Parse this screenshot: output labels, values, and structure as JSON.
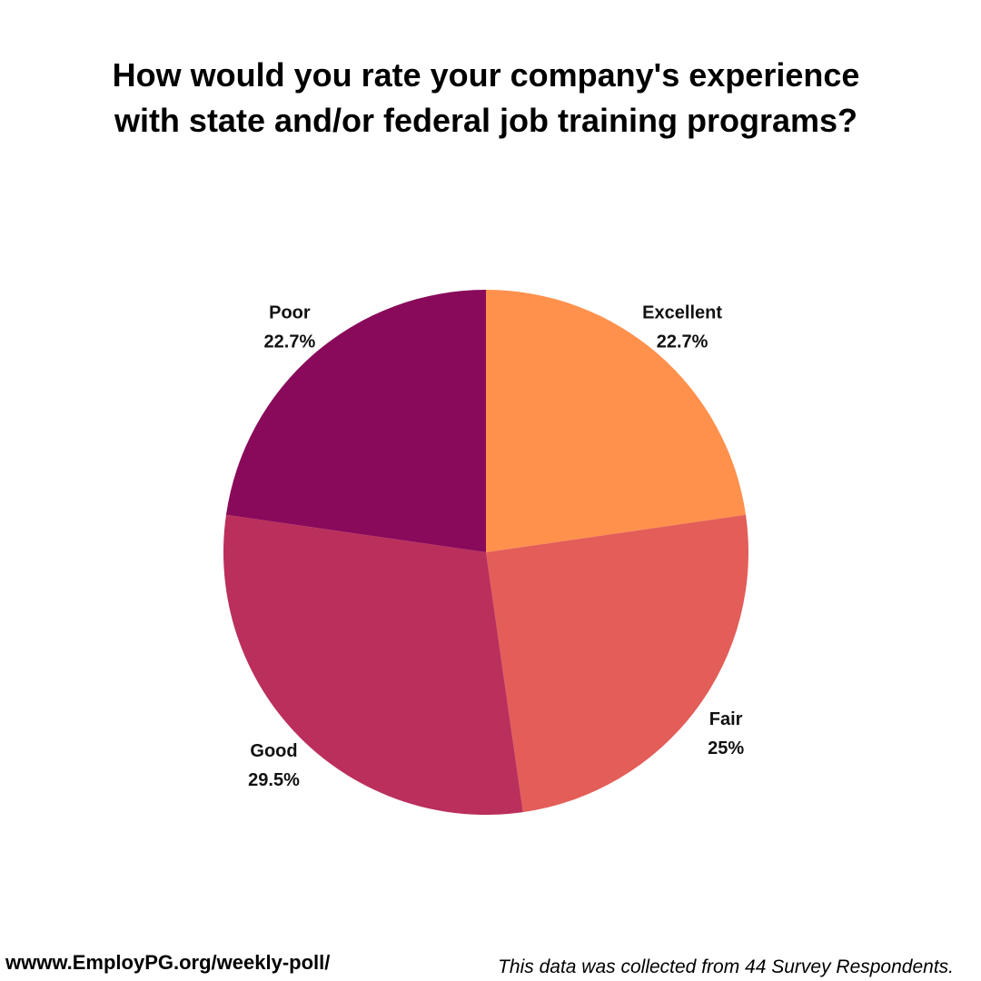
{
  "chart_data": {
    "type": "pie",
    "title_lines": [
      "How would you rate your company's experience",
      "with state and/or federal job training programs?"
    ],
    "slices": [
      {
        "label": "Excellent",
        "value": 22.7,
        "value_label": "22.7%",
        "color": "#ff914d"
      },
      {
        "label": "Fair",
        "value": 25,
        "value_label": "25%",
        "color": "#e35d59"
      },
      {
        "label": "Good",
        "value": 29.5,
        "value_label": "29.5%",
        "color": "#bb2f5c"
      },
      {
        "label": "Poor",
        "value": 22.7,
        "value_label": "22.7%",
        "color": "#890a5a"
      }
    ],
    "start_angle": "12 o'clock",
    "direction": "clockwise",
    "legend": "none"
  },
  "footer": {
    "url": "wwww.EmployPG.org/weekly-poll/",
    "note": "This data was collected from 44 Survey Respondents."
  }
}
